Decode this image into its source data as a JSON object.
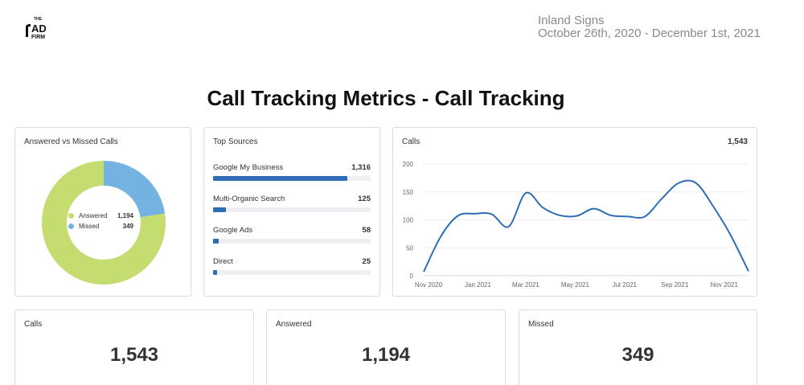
{
  "logo": {
    "small": "THE",
    "big": "AD",
    "sub": "FIRM"
  },
  "header": {
    "client": "Inland Signs",
    "date_range": "October 26th, 2020 - December 1st, 2021"
  },
  "page_title": "Call Tracking Metrics - Call Tracking",
  "colors": {
    "answered": "#c5dc70",
    "missed": "#74b3e1",
    "bar": "#2f6db5",
    "line": "#2f6db5"
  },
  "donut": {
    "title": "Answered vs Missed Calls",
    "legend": [
      {
        "label": "Answered",
        "value": "1,194"
      },
      {
        "label": "Missed",
        "value": "349"
      }
    ]
  },
  "sources": {
    "title": "Top Sources",
    "max": 1316,
    "items": [
      {
        "label": "Google My Business",
        "value": "1,316",
        "num": 1316
      },
      {
        "label": "Multi-Organic Search",
        "value": "125",
        "num": 125
      },
      {
        "label": "Google Ads",
        "value": "58",
        "num": 58
      },
      {
        "label": "Direct",
        "value": "25",
        "num": 25
      }
    ]
  },
  "line": {
    "title": "Calls",
    "total": "1,543"
  },
  "kpis": {
    "calls": {
      "label": "Calls",
      "value": "1,543"
    },
    "answered": {
      "label": "Answered",
      "value": "1,194"
    },
    "missed": {
      "label": "Missed",
      "value": "349"
    }
  },
  "chart_data": [
    {
      "type": "pie",
      "title": "Answered vs Missed Calls",
      "categories": [
        "Answered",
        "Missed"
      ],
      "values": [
        1194,
        349
      ]
    },
    {
      "type": "bar",
      "title": "Top Sources",
      "categories": [
        "Google My Business",
        "Multi-Organic Search",
        "Google Ads",
        "Direct"
      ],
      "values": [
        1316,
        125,
        58,
        25
      ]
    },
    {
      "type": "line",
      "title": "Calls",
      "x": [
        "2020-10-26",
        "2020-11-16",
        "2020-12-07",
        "2020-12-28",
        "2021-01-18",
        "2021-02-08",
        "2021-03-01",
        "2021-03-22",
        "2021-04-12",
        "2021-05-03",
        "2021-05-24",
        "2021-06-14",
        "2021-07-05",
        "2021-07-26",
        "2021-08-16",
        "2021-09-06",
        "2021-09-27",
        "2021-10-18",
        "2021-11-08",
        "2021-12-01"
      ],
      "values": [
        7,
        70,
        107,
        111,
        110,
        88,
        148,
        122,
        108,
        107,
        120,
        108,
        106,
        106,
        138,
        166,
        166,
        125,
        75,
        8
      ],
      "xticks": [
        "Nov 2020",
        "Jan 2021",
        "Mar 2021",
        "May 2021",
        "Jul 2021",
        "Sep 2021",
        "Nov 2021"
      ],
      "xtick_dates": [
        "2020-11-01",
        "2021-01-01",
        "2021-03-01",
        "2021-05-01",
        "2021-07-01",
        "2021-09-01",
        "2021-11-01"
      ],
      "yticks": [
        0,
        50,
        100,
        150,
        200
      ],
      "ylim": [
        0,
        200
      ],
      "xlim": [
        "2020-10-26",
        "2021-12-01"
      ],
      "grid": true
    }
  ]
}
